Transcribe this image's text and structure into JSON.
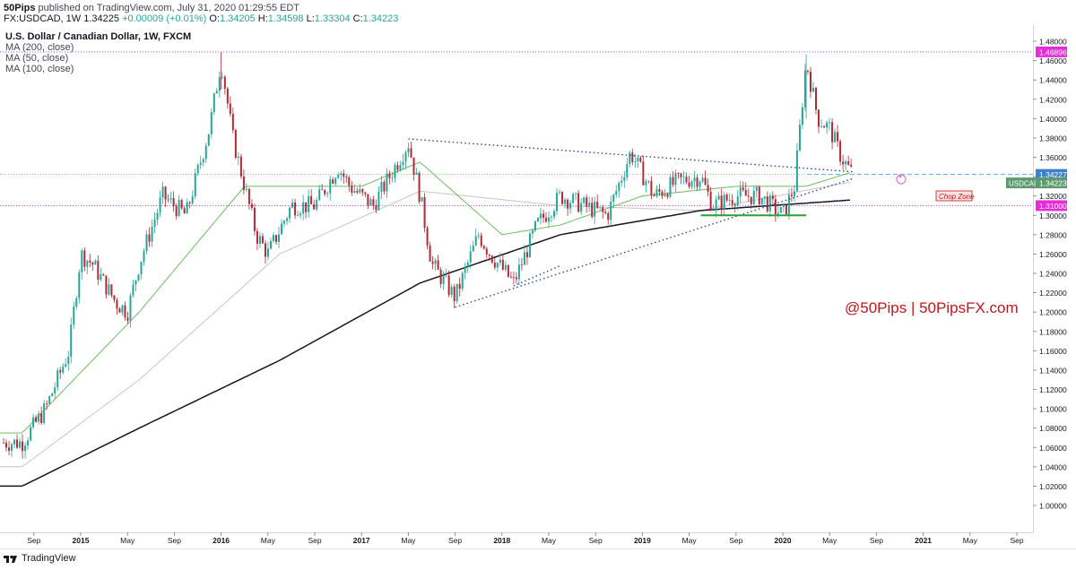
{
  "header": {
    "publisher": "50Pips",
    "published_text": "published on TradingView.com, July 31, 2020 01:29:55 EDT",
    "symbol": "FX:USDCAD, 1W",
    "last": "1.34225",
    "change": "+0.00009 (+0.01%)",
    "o_label": "O:",
    "o": "1.34205",
    "h_label": "H:",
    "h": "1.34598",
    "l_label": "L:",
    "l": "1.33304",
    "c_label": "C:",
    "c": "1.34223"
  },
  "legend": {
    "title": "U.S. Dollar / Canadian Dollar, 1W, FXCM",
    "ma200": "MA (200, close)",
    "ma50": "MA (50, close)",
    "ma100": "MA (100, close)"
  },
  "annotations": {
    "watermark": "@50Pips | 50PipsFX.com",
    "chop_zone": "Chop Zone"
  },
  "price_tags": {
    "high": "1.46896",
    "upper_line": "1.34227",
    "symbol_tag": "USDCAD",
    "current": "1.34223",
    "lower_line": "1.31000"
  },
  "footer": {
    "brand": "TradingView"
  },
  "colors": {
    "up": "#26a69a",
    "down": "#b22833",
    "ma200": "#131722",
    "ma50": "#6fbd5f",
    "ma100": "#c9c4c8",
    "trendline": "#1f3a93",
    "magenta": "#e62cd9",
    "support": "#2e9e35"
  },
  "chart_data": {
    "type": "candlestick",
    "symbol": "USDCAD",
    "timeframe": "1W",
    "ylim": [
      1.0,
      1.48
    ],
    "y_ticks": [
      "1.48000",
      "1.46000",
      "1.44000",
      "1.42000",
      "1.40000",
      "1.38000",
      "1.36000",
      "1.34000",
      "1.32000",
      "1.30000",
      "1.28000",
      "1.26000",
      "1.24000",
      "1.22000",
      "1.20000",
      "1.18000",
      "1.16000",
      "1.14000",
      "1.12000",
      "1.10000",
      "1.08000",
      "1.06000",
      "1.04000",
      "1.02000",
      "1.00000"
    ],
    "x_ticks": [
      "Sep",
      "2015",
      "May",
      "Sep",
      "2016",
      "May",
      "Sep",
      "2017",
      "May",
      "Sep",
      "2018",
      "May",
      "Sep",
      "2019",
      "May",
      "Sep",
      "2020",
      "May",
      "Sep",
      "2021",
      "May",
      "Sep"
    ],
    "price_path": [
      [
        "2014-08",
        1.065
      ],
      [
        "2014-10",
        1.1
      ],
      [
        "2014-12",
        1.16
      ],
      [
        "2015-01",
        1.26
      ],
      [
        "2015-02",
        1.25
      ],
      [
        "2015-04",
        1.21
      ],
      [
        "2015-05",
        1.2
      ],
      [
        "2015-06",
        1.25
      ],
      [
        "2015-08",
        1.32
      ],
      [
        "2015-10",
        1.3
      ],
      [
        "2015-12",
        1.39
      ],
      [
        "2016-01",
        1.46
      ],
      [
        "2016-02",
        1.38
      ],
      [
        "2016-04",
        1.28
      ],
      [
        "2016-05",
        1.26
      ],
      [
        "2016-07",
        1.31
      ],
      [
        "2016-09",
        1.31
      ],
      [
        "2016-11",
        1.35
      ],
      [
        "2016-12",
        1.33
      ],
      [
        "2017-02",
        1.31
      ],
      [
        "2017-05",
        1.375
      ],
      [
        "2017-06",
        1.32
      ],
      [
        "2017-07",
        1.25
      ],
      [
        "2017-09",
        1.215
      ],
      [
        "2017-11",
        1.28
      ],
      [
        "2017-12",
        1.26
      ],
      [
        "2018-02",
        1.23
      ],
      [
        "2018-04",
        1.29
      ],
      [
        "2018-06",
        1.32
      ],
      [
        "2018-08",
        1.31
      ],
      [
        "2018-10",
        1.3
      ],
      [
        "2018-12",
        1.365
      ],
      [
        "2019-02",
        1.32
      ],
      [
        "2019-04",
        1.335
      ],
      [
        "2019-06",
        1.34
      ],
      [
        "2019-07",
        1.31
      ],
      [
        "2019-09",
        1.32
      ],
      [
        "2019-11",
        1.32
      ],
      [
        "2020-01",
        1.3
      ],
      [
        "2020-02",
        1.33
      ],
      [
        "2020-03",
        1.46
      ],
      [
        "2020-04",
        1.4
      ],
      [
        "2020-05",
        1.39
      ],
      [
        "2020-06",
        1.36
      ],
      [
        "2020-07",
        1.342
      ]
    ],
    "ma200_path": [
      [
        "2014-08",
        1.02
      ],
      [
        "2015-06",
        1.08
      ],
      [
        "2016-06",
        1.15
      ],
      [
        "2017-06",
        1.23
      ],
      [
        "2018-06",
        1.28
      ],
      [
        "2019-06",
        1.305
      ],
      [
        "2020-07",
        1.316
      ]
    ],
    "ma100_path": [
      [
        "2014-08",
        1.04
      ],
      [
        "2015-06",
        1.13
      ],
      [
        "2016-06",
        1.26
      ],
      [
        "2017-06",
        1.325
      ],
      [
        "2018-06",
        1.31
      ],
      [
        "2019-06",
        1.305
      ],
      [
        "2020-07",
        1.335
      ]
    ],
    "ma50_path": [
      [
        "2014-08",
        1.075
      ],
      [
        "2015-06",
        1.2
      ],
      [
        "2016-03",
        1.33
      ],
      [
        "2017-01",
        1.33
      ],
      [
        "2017-06",
        1.355
      ],
      [
        "2018-01",
        1.28
      ],
      [
        "2018-06",
        1.29
      ],
      [
        "2019-01",
        1.32
      ],
      [
        "2019-09",
        1.33
      ],
      [
        "2020-03",
        1.33
      ],
      [
        "2020-07",
        1.345
      ]
    ],
    "horizontal_levels": [
      1.46896,
      1.34227,
      1.31
    ],
    "trendlines": [
      {
        "from": [
          "2017-05",
          1.379
        ],
        "to": [
          "2020-07",
          1.345
        ]
      },
      {
        "from": [
          "2017-09",
          1.205
        ],
        "to": [
          "2020-07",
          1.338
        ]
      },
      {
        "from": [
          "2018-02",
          1.227
        ],
        "to": [
          "2018-06",
          1.248
        ]
      }
    ],
    "support_line": {
      "from": [
        "2019-06",
        1.3
      ],
      "to": [
        "2020-03",
        1.3
      ]
    }
  }
}
